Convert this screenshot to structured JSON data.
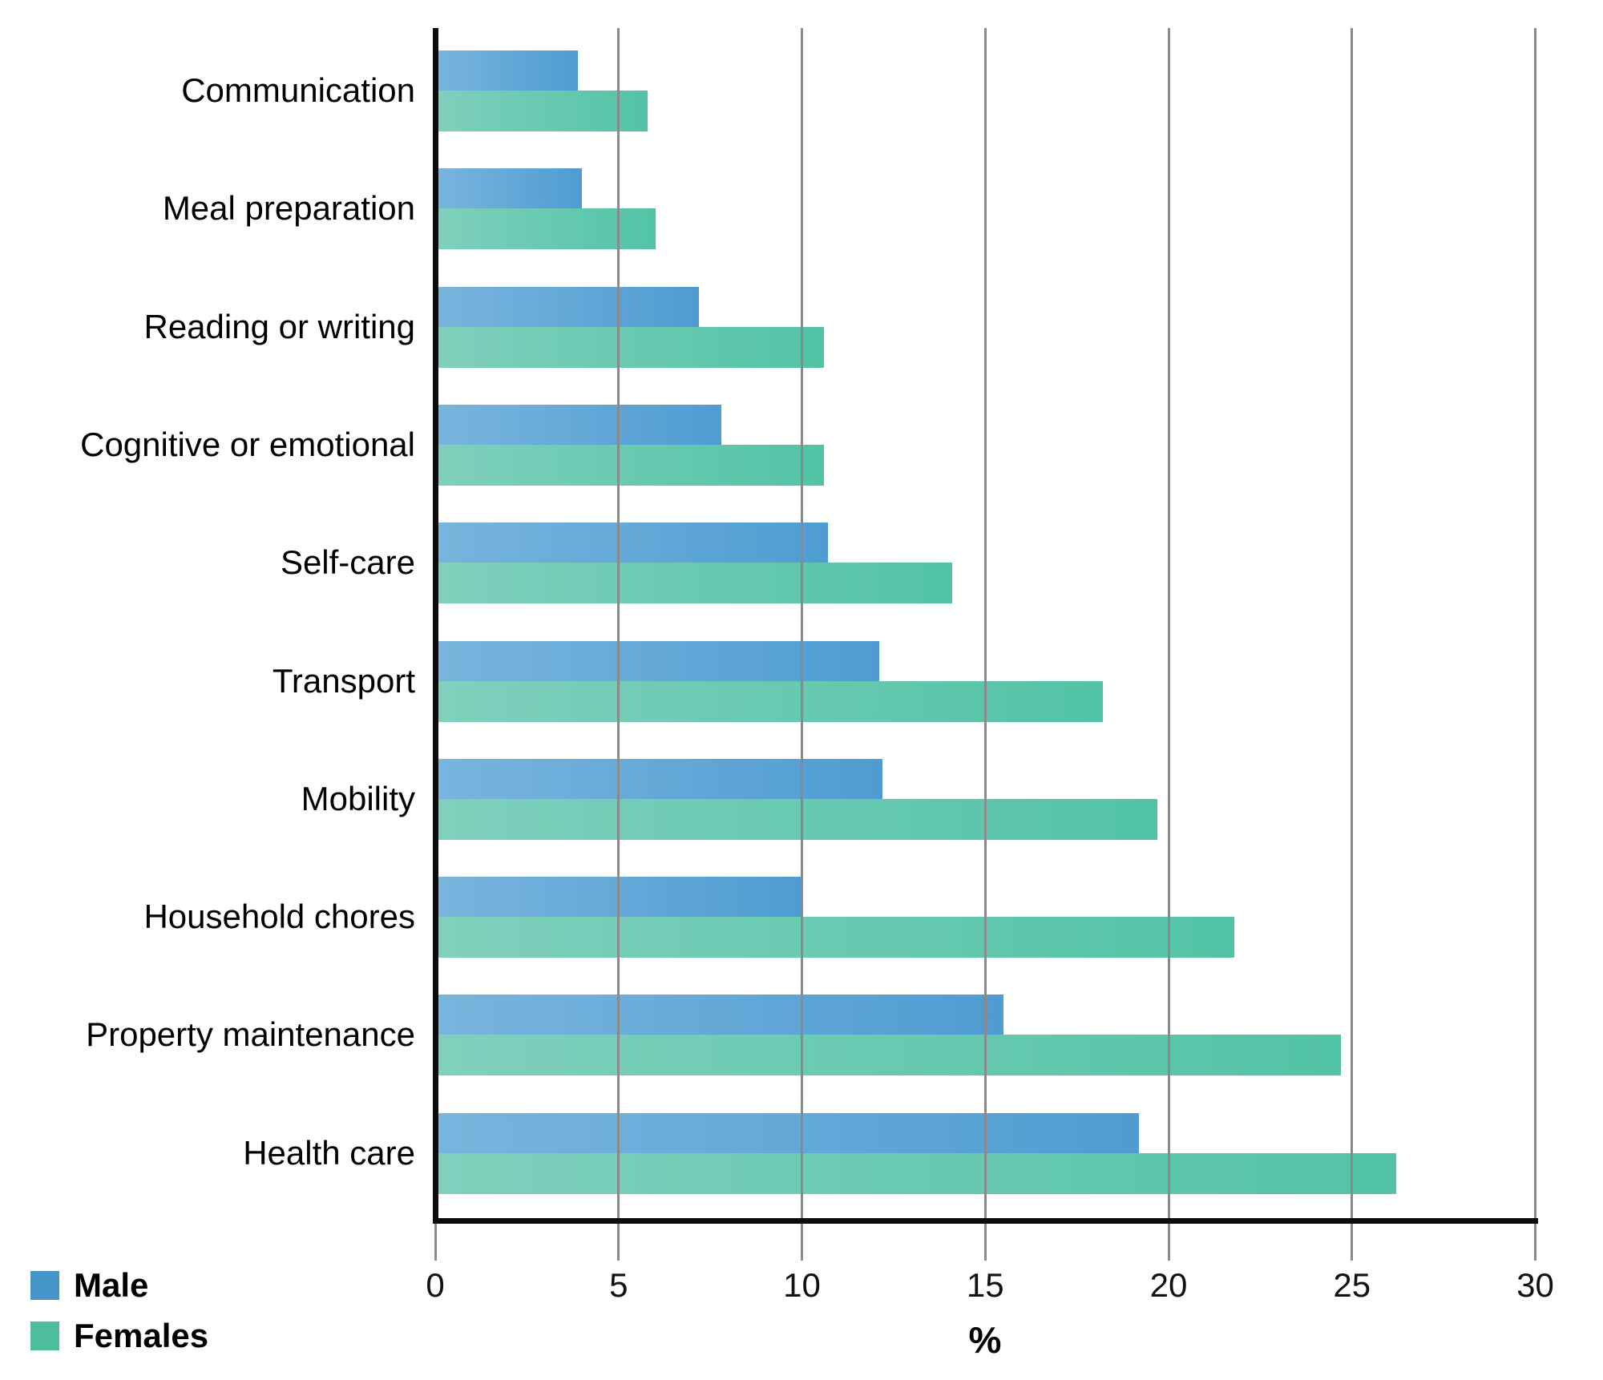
{
  "chart_data": {
    "type": "bar",
    "orientation": "horizontal",
    "title": "",
    "xlabel": "%",
    "xlim": [
      0,
      30
    ],
    "xticks": [
      0,
      5,
      10,
      15,
      20,
      25,
      30
    ],
    "grid": true,
    "legend_position": "bottom-left",
    "categories": [
      "Communication",
      "Meal preparation",
      "Reading or writing",
      "Cognitive or emotional",
      "Self-care",
      "Transport",
      "Mobility",
      "Household chores",
      "Property maintenance",
      "Health care"
    ],
    "series": [
      {
        "name": "Male",
        "values": [
          3.9,
          4.0,
          7.2,
          7.8,
          10.7,
          12.1,
          12.2,
          10.0,
          15.5,
          19.2
        ],
        "color_start": "#79b5dd",
        "color_end": "#4f9cd2",
        "legend_color": "#4595c8"
      },
      {
        "name": "Females",
        "values": [
          5.8,
          6.0,
          10.6,
          10.6,
          14.1,
          18.2,
          19.7,
          21.8,
          24.7,
          26.2
        ],
        "color_start": "#80d0bc",
        "color_end": "#52c3a6",
        "legend_color": "#4dbd9e"
      }
    ]
  },
  "legend": {
    "male_label": "Male",
    "females_label": "Females"
  },
  "axis": {
    "percent_label": "%"
  }
}
